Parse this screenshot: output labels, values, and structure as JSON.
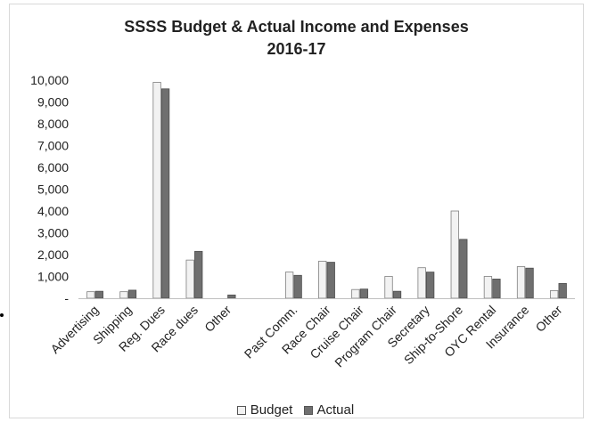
{
  "chart_data": {
    "type": "bar",
    "title": [
      "SSSS Budget & Actual Income and Expenses",
      "2016-17"
    ],
    "categories": [
      "Advertising",
      "Shipping",
      "Reg. Dues",
      "Race dues",
      "Other",
      "",
      "Past Comm.",
      "Race Chair",
      "Cruise Chair",
      "Program Chair",
      "Secretary",
      "Ship-to-Shore",
      "OYC Rental",
      "Insurance",
      "Other"
    ],
    "series": [
      {
        "name": "Budget",
        "color": "#f2f2f2",
        "values": [
          300,
          300,
          9900,
          1750,
          0,
          0,
          1200,
          1700,
          400,
          1000,
          1400,
          4000,
          1000,
          1450,
          350
        ]
      },
      {
        "name": "Actual",
        "color": "#6f6f6f",
        "values": [
          320,
          370,
          9600,
          2150,
          150,
          0,
          1050,
          1650,
          420,
          320,
          1200,
          2700,
          880,
          1380,
          680
        ]
      }
    ],
    "yticks": [
      "-",
      "1,000",
      "2,000",
      "3,000",
      "4,000",
      "5,000",
      "6,000",
      "7,000",
      "8,000",
      "9,000",
      "10,000"
    ],
    "ylim": [
      0,
      10000
    ],
    "xlabel": "",
    "ylabel": "",
    "grid": false,
    "legend_position": "bottom"
  }
}
